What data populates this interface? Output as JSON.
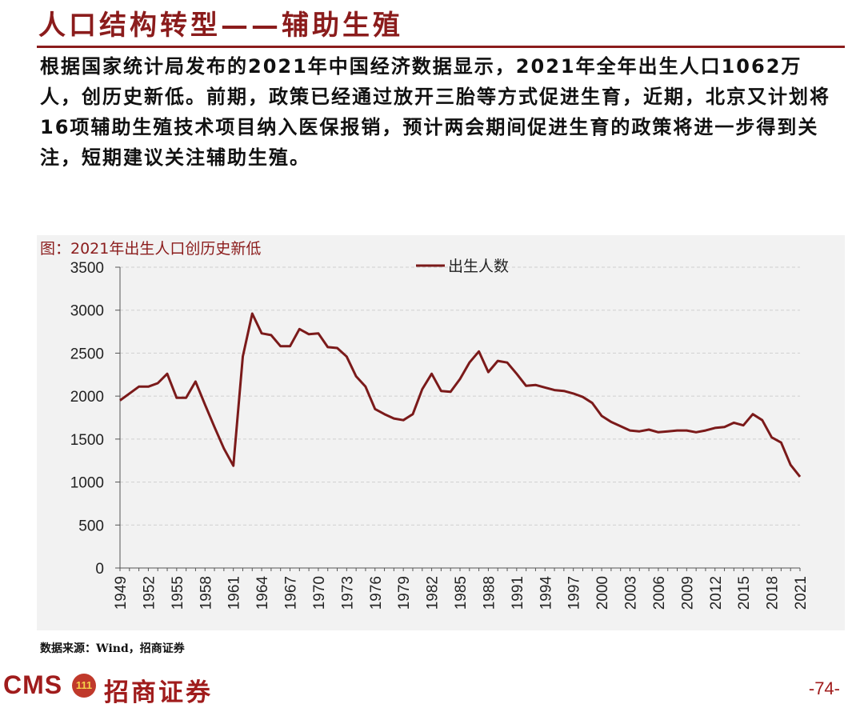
{
  "header": {
    "title": "人口结构转型——辅助生殖"
  },
  "summary": "根据国家统计局发布的2021年中国经济数据显示，2021年全年出生人口1062万人，创历史新低。前期，政策已经通过放开三胎等方式促进生育，近期，北京又计划将16项辅助生殖技术项目纳入医保报销，预计两会期间促进生育的政策将进一步得到关注，短期建议关注辅助生殖。",
  "chart_title": "图：2021年出生人口创历史新低",
  "source": "数据来源：Wind，招商证券",
  "footer": {
    "brand_cms": "CMS",
    "brand_logo": "111",
    "brand_name": "招商证券",
    "page": "-74-"
  },
  "colors": {
    "accent": "#8b1c1c",
    "series": "#7b1a1a",
    "panel": "#f2f2f2"
  },
  "chart_data": {
    "type": "line",
    "title": "图：2021年出生人口创历史新低",
    "legend_position": "top",
    "grid": true,
    "ylim": [
      0,
      3500
    ],
    "yticks": [
      0,
      500,
      1000,
      1500,
      2000,
      2500,
      3000,
      3500
    ],
    "xticks": [
      "1949",
      "1952",
      "1955",
      "1958",
      "1961",
      "1964",
      "1967",
      "1970",
      "1973",
      "1976",
      "1979",
      "1982",
      "1985",
      "1988",
      "1991",
      "1994",
      "1997",
      "2000",
      "2003",
      "2006",
      "2009",
      "2012",
      "2015",
      "2018",
      "2021"
    ],
    "x": [
      1949,
      1950,
      1951,
      1952,
      1953,
      1954,
      1955,
      1956,
      1957,
      1958,
      1959,
      1960,
      1961,
      1962,
      1963,
      1964,
      1965,
      1966,
      1967,
      1968,
      1969,
      1970,
      1971,
      1972,
      1973,
      1974,
      1975,
      1976,
      1977,
      1978,
      1979,
      1980,
      1981,
      1982,
      1983,
      1984,
      1985,
      1986,
      1987,
      1988,
      1989,
      1990,
      1991,
      1992,
      1993,
      1994,
      1995,
      1996,
      1997,
      1998,
      1999,
      2000,
      2001,
      2002,
      2003,
      2004,
      2005,
      2006,
      2007,
      2008,
      2009,
      2010,
      2011,
      2012,
      2013,
      2014,
      2015,
      2016,
      2017,
      2018,
      2019,
      2020,
      2021
    ],
    "series": [
      {
        "name": "出生人数",
        "values": [
          1950,
          2030,
          2110,
          2110,
          2150,
          2260,
          1980,
          1980,
          2170,
          1900,
          1640,
          1390,
          1190,
          2460,
          2960,
          2730,
          2710,
          2580,
          2580,
          2780,
          2720,
          2730,
          2570,
          2560,
          2460,
          2230,
          2110,
          1850,
          1790,
          1740,
          1720,
          1790,
          2080,
          2260,
          2060,
          2050,
          2200,
          2390,
          2520,
          2280,
          2410,
          2390,
          2260,
          2120,
          2130,
          2100,
          2070,
          2060,
          2030,
          1990,
          1920,
          1770,
          1700,
          1650,
          1600,
          1590,
          1610,
          1580,
          1590,
          1600,
          1600,
          1580,
          1600,
          1630,
          1640,
          1690,
          1660,
          1790,
          1720,
          1520,
          1460,
          1200,
          1062
        ]
      }
    ]
  }
}
